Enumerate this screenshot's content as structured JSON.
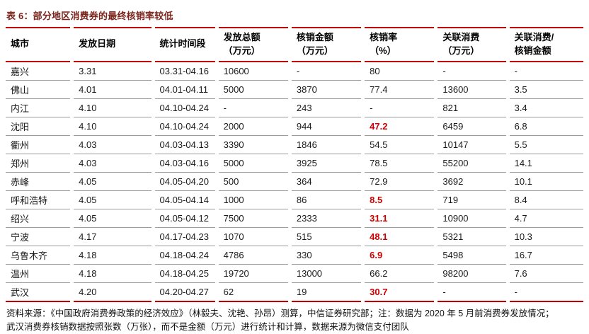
{
  "table": {
    "title": "表 6：部分地区消费券的最终核销率较低",
    "columns": [
      {
        "line1": "城市",
        "line2": ""
      },
      {
        "line1": "发放日期",
        "line2": ""
      },
      {
        "line1": "统计时间段",
        "line2": ""
      },
      {
        "line1": "发放总额",
        "line2": "（万元）"
      },
      {
        "line1": "核销金额",
        "line2": "（万元）"
      },
      {
        "line1": "核销率",
        "line2": "（%）"
      },
      {
        "line1": "关联消费",
        "line2": "（万元）"
      },
      {
        "line1": "关联消费/",
        "line2": "核销金额"
      }
    ],
    "rows": [
      {
        "city": "嘉兴",
        "issue_date": "3.31",
        "period": "03.31-04.16",
        "issued": "10600",
        "redeemed": "-",
        "rate": "80",
        "rate_highlight": false,
        "consumption": "-",
        "ratio": "-"
      },
      {
        "city": "佛山",
        "issue_date": "4.01",
        "period": "04.01-04.11",
        "issued": "5000",
        "redeemed": "3870",
        "rate": "77.4",
        "rate_highlight": false,
        "consumption": "13600",
        "ratio": "3.5"
      },
      {
        "city": "内江",
        "issue_date": "4.10",
        "period": "04.10-04.24",
        "issued": "-",
        "redeemed": "243",
        "rate": "-",
        "rate_highlight": false,
        "consumption": "821",
        "ratio": "3.4"
      },
      {
        "city": "沈阳",
        "issue_date": "4.10",
        "period": "04.10-04.24",
        "issued": "2000",
        "redeemed": "944",
        "rate": "47.2",
        "rate_highlight": true,
        "consumption": "6459",
        "ratio": "6.8"
      },
      {
        "city": "衢州",
        "issue_date": "4.03",
        "period": "04.03-04.13",
        "issued": "3390",
        "redeemed": "1846",
        "rate": "54.5",
        "rate_highlight": false,
        "consumption": "10147",
        "ratio": "5.5"
      },
      {
        "city": "郑州",
        "issue_date": "4.03",
        "period": "04.03-04.16",
        "issued": "5000",
        "redeemed": "3925",
        "rate": "78.5",
        "rate_highlight": false,
        "consumption": "55200",
        "ratio": "14.1"
      },
      {
        "city": "赤峰",
        "issue_date": "4.05",
        "period": "04.05-04.20",
        "issued": "500",
        "redeemed": "364",
        "rate": "72.9",
        "rate_highlight": false,
        "consumption": "3692",
        "ratio": "10.1"
      },
      {
        "city": "呼和浩特",
        "issue_date": "4.05",
        "period": "04.05-04.14",
        "issued": "1000",
        "redeemed": "86",
        "rate": "8.5",
        "rate_highlight": true,
        "consumption": "719",
        "ratio": "8.4"
      },
      {
        "city": "绍兴",
        "issue_date": "4.05",
        "period": "04.05-04.12",
        "issued": "7500",
        "redeemed": "2333",
        "rate": "31.1",
        "rate_highlight": true,
        "consumption": "10900",
        "ratio": "4.7"
      },
      {
        "city": "宁波",
        "issue_date": "4.17",
        "period": "04.17-04.23",
        "issued": "1070",
        "redeemed": "515",
        "rate": "48.1",
        "rate_highlight": true,
        "consumption": "5321",
        "ratio": "10.3"
      },
      {
        "city": "乌鲁木齐",
        "issue_date": "4.18",
        "period": "04.18-04.24",
        "issued": "4786",
        "redeemed": "330",
        "rate": "6.9",
        "rate_highlight": true,
        "consumption": "5498",
        "ratio": "16.7"
      },
      {
        "city": "温州",
        "issue_date": "4.18",
        "period": "04.18-04.25",
        "issued": "19720",
        "redeemed": "13000",
        "rate": "66.2",
        "rate_highlight": false,
        "consumption": "98200",
        "ratio": "7.6"
      },
      {
        "city": "武汉",
        "issue_date": "4.20",
        "period": "04.20-04.27",
        "issued": "62",
        "redeemed": "19",
        "rate": "30.7",
        "rate_highlight": true,
        "consumption": "-",
        "ratio": "-"
      }
    ]
  },
  "footer": {
    "line1": "资料来源：《中国政府消费券政策的经济效应》（林毅夫、沈艳、孙昂）测算，中信证券研究部；注：数据为 2020 年 5 月前消费券发放情况；",
    "line2": "武汉消费券核销数据按照张数（万张），而不是金额（万元）进行统计和计算，数据来源为微信支付团队"
  },
  "colors": {
    "accent_red": "#c00000",
    "highlight_red": "#cc0000",
    "title_maroon": "#7a241c",
    "row_separator_gray": "#9b9b9b"
  }
}
